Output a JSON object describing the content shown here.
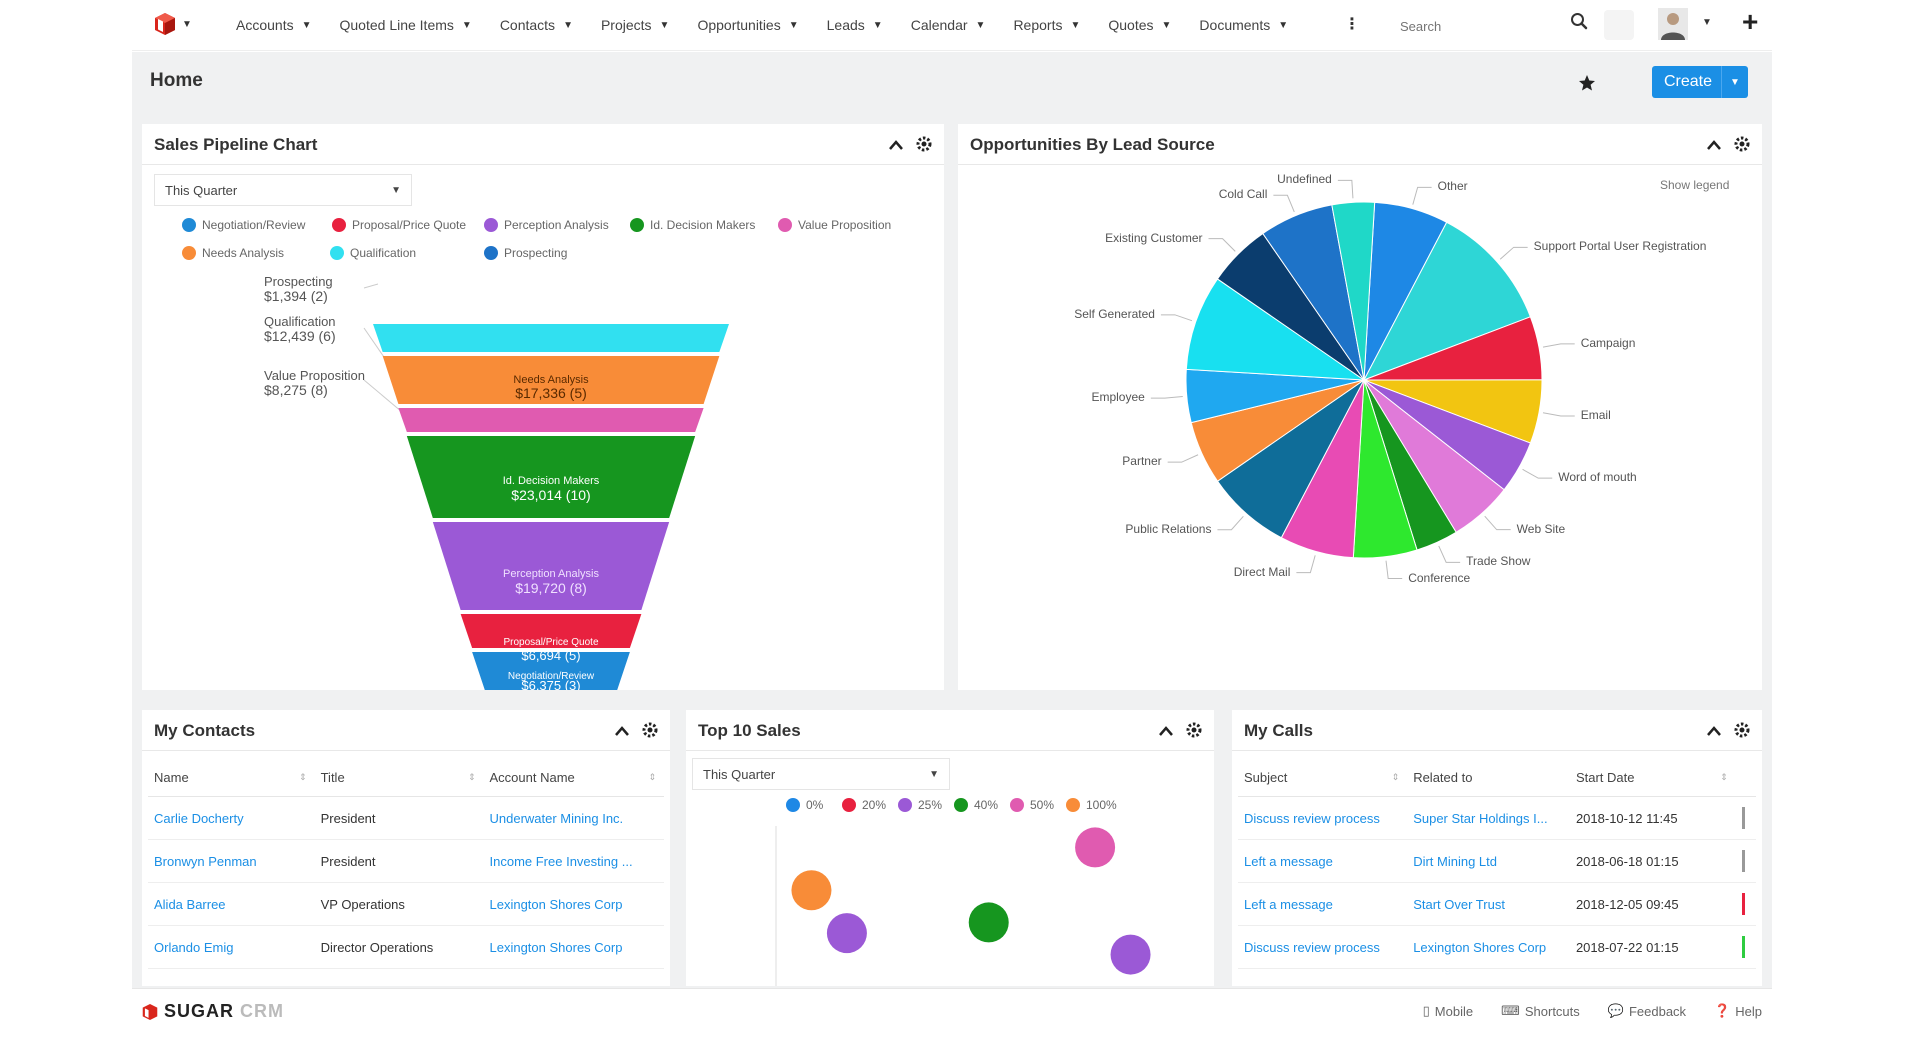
{
  "app": {
    "name": "SugarCRM"
  },
  "nav": {
    "items": [
      {
        "label": "Accounts"
      },
      {
        "label": "Quoted Line Items"
      },
      {
        "label": "Contacts"
      },
      {
        "label": "Projects"
      },
      {
        "label": "Opportunities"
      },
      {
        "label": "Leads"
      },
      {
        "label": "Calendar"
      },
      {
        "label": "Reports"
      },
      {
        "label": "Quotes"
      },
      {
        "label": "Documents"
      }
    ],
    "search_placeholder": "Search"
  },
  "page": {
    "title": "Home",
    "create_label": "Create"
  },
  "sales_pipeline": {
    "title": "Sales Pipeline Chart",
    "filter": "This Quarter",
    "chart_data": {
      "type": "funnel",
      "legend": [
        {
          "label": "Negotiation/Review",
          "color": "#1f8ad6"
        },
        {
          "label": "Proposal/Price Quote",
          "color": "#e8213f"
        },
        {
          "label": "Perception Analysis",
          "color": "#9b59d6"
        },
        {
          "label": "Id. Decision Makers",
          "color": "#16961f"
        },
        {
          "label": "Value Proposition",
          "color": "#e05bb0"
        },
        {
          "label": "Needs Analysis",
          "color": "#f88c38"
        },
        {
          "label": "Qualification",
          "color": "#31e0f0"
        },
        {
          "label": "Prospecting",
          "color": "#1e73c8"
        }
      ],
      "stages": [
        {
          "name": "Prospecting",
          "amount": "$1,394",
          "count": 2,
          "color": "#31e0f0",
          "label_inside": false
        },
        {
          "name": "Needs Analysis",
          "amount": "$17,336",
          "count": 5,
          "color": "#f88c38",
          "label_inside": true
        },
        {
          "name": "Qualification",
          "amount": "$12,439",
          "count": 6,
          "color": "#31e0f0",
          "label_inside": false
        },
        {
          "name": "Value Proposition",
          "amount": "$8,275",
          "count": 8,
          "color": "#e05bb0",
          "label_inside": false
        },
        {
          "name": "Id. Decision Makers",
          "amount": "$23,014",
          "count": 10,
          "color": "#16961f",
          "label_inside": true
        },
        {
          "name": "Perception Analysis",
          "amount": "$19,720",
          "count": 8,
          "color": "#9b59d6",
          "label_inside": true
        },
        {
          "name": "Proposal/Price Quote",
          "amount": "$6,694",
          "count": 5,
          "color": "#e8213f",
          "label_inside": true
        },
        {
          "name": "Negotiation/Review",
          "amount": "$6,375",
          "count": 3,
          "color": "#1f8ad6",
          "label_inside": true
        }
      ],
      "side_labels": [
        {
          "name": "Prospecting",
          "value": "$1,394 (2)"
        },
        {
          "name": "Qualification",
          "value": "$12,439 (6)"
        },
        {
          "name": "Value Proposition",
          "value": "$8,275 (8)"
        }
      ],
      "inside_labels": [
        {
          "name": "Needs Analysis",
          "value": "$17,336 (5)"
        },
        {
          "name": "Id. Decision Makers",
          "value": "$23,014 (10)"
        },
        {
          "name": "Perception Analysis",
          "value": "$19,720 (8)"
        },
        {
          "name": "Proposal/Price Quote",
          "value": "$6,694 (5)"
        },
        {
          "name": "Negotiation/Review",
          "value": "$6,375 (3)"
        }
      ]
    }
  },
  "lead_source": {
    "title": "Opportunities By Lead Source",
    "show_legend": "Show legend",
    "chart_data": {
      "type": "pie",
      "slices": [
        {
          "label": "Other",
          "value": 7,
          "color": "#1e88e5"
        },
        {
          "label": "Support Portal User Registration",
          "value": 12,
          "color": "#2ed6d6"
        },
        {
          "label": "Campaign",
          "value": 6,
          "color": "#e8213f"
        },
        {
          "label": "Email",
          "value": 6,
          "color": "#f2c511"
        },
        {
          "label": "Word of mouth",
          "value": 5,
          "color": "#9b59d6"
        },
        {
          "label": "Web Site",
          "value": 6,
          "color": "#e07ad9"
        },
        {
          "label": "Trade Show",
          "value": 4,
          "color": "#16961f"
        },
        {
          "label": "Conference",
          "value": 6,
          "color": "#2ee82e"
        },
        {
          "label": "Direct Mail",
          "value": 7,
          "color": "#e84bb4"
        },
        {
          "label": "Public Relations",
          "value": 8,
          "color": "#0f6d99"
        },
        {
          "label": "Partner",
          "value": 6,
          "color": "#f88c38"
        },
        {
          "label": "Employee",
          "value": 5,
          "color": "#1fa8f0"
        },
        {
          "label": "Self Generated",
          "value": 9,
          "color": "#18e0f0"
        },
        {
          "label": "Existing Customer",
          "value": 6,
          "color": "#0b3d6e"
        },
        {
          "label": "Cold Call",
          "value": 7,
          "color": "#1e73c8"
        },
        {
          "label": "Undefined",
          "value": 4,
          "color": "#1fd8c8"
        }
      ]
    }
  },
  "my_contacts": {
    "title": "My Contacts",
    "columns": [
      "Name",
      "Title",
      "Account Name"
    ],
    "rows": [
      {
        "name": "Carlie Docherty",
        "title": "President",
        "account": "Underwater Mining Inc."
      },
      {
        "name": "Bronwyn Penman",
        "title": "President",
        "account": "Income Free Investing ..."
      },
      {
        "name": "Alida Barree",
        "title": "VP Operations",
        "account": "Lexington Shores Corp"
      },
      {
        "name": "Orlando Emig",
        "title": "Director Operations",
        "account": "Lexington Shores Corp"
      }
    ]
  },
  "top_sales": {
    "title": "Top 10 Sales",
    "filter": "This Quarter",
    "chart_data": {
      "type": "scatter",
      "legend": [
        {
          "label": "0%",
          "color": "#1e88e5"
        },
        {
          "label": "20%",
          "color": "#e8213f"
        },
        {
          "label": "25%",
          "color": "#9b59d6"
        },
        {
          "label": "40%",
          "color": "#16961f"
        },
        {
          "label": "50%",
          "color": "#e05bb0"
        },
        {
          "label": "100%",
          "color": "#f88c38"
        }
      ],
      "points": [
        {
          "x": 1,
          "y": 7,
          "color": "#f88c38"
        },
        {
          "x": 2,
          "y": 5,
          "color": "#9b59d6"
        },
        {
          "x": 6,
          "y": 5.5,
          "color": "#16961f"
        },
        {
          "x": 9,
          "y": 9,
          "color": "#e05bb0"
        },
        {
          "x": 10,
          "y": 4,
          "color": "#9b59d6"
        }
      ],
      "xlim": [
        0,
        11
      ],
      "ylim": [
        3,
        10
      ]
    }
  },
  "my_calls": {
    "title": "My Calls",
    "columns": [
      "Subject",
      "Related to",
      "Start Date"
    ],
    "rows": [
      {
        "subject": "Discuss review process",
        "related": "Super Star Holdings I...",
        "date": "2018-10-12 11:45",
        "marker": "#999999"
      },
      {
        "subject": "Left a message",
        "related": "Dirt Mining Ltd",
        "date": "2018-06-18 01:15",
        "marker": "#999999"
      },
      {
        "subject": "Left a message",
        "related": "Start Over Trust",
        "date": "2018-12-05 09:45",
        "marker": "#e8213f"
      },
      {
        "subject": "Discuss review process",
        "related": "Lexington Shores Corp",
        "date": "2018-07-22 01:15",
        "marker": "#2ecc40"
      }
    ]
  },
  "footer": {
    "logo_main": "SUGAR",
    "logo_suffix": "CRM",
    "links": [
      "Mobile",
      "Shortcuts",
      "Feedback",
      "Help"
    ]
  }
}
